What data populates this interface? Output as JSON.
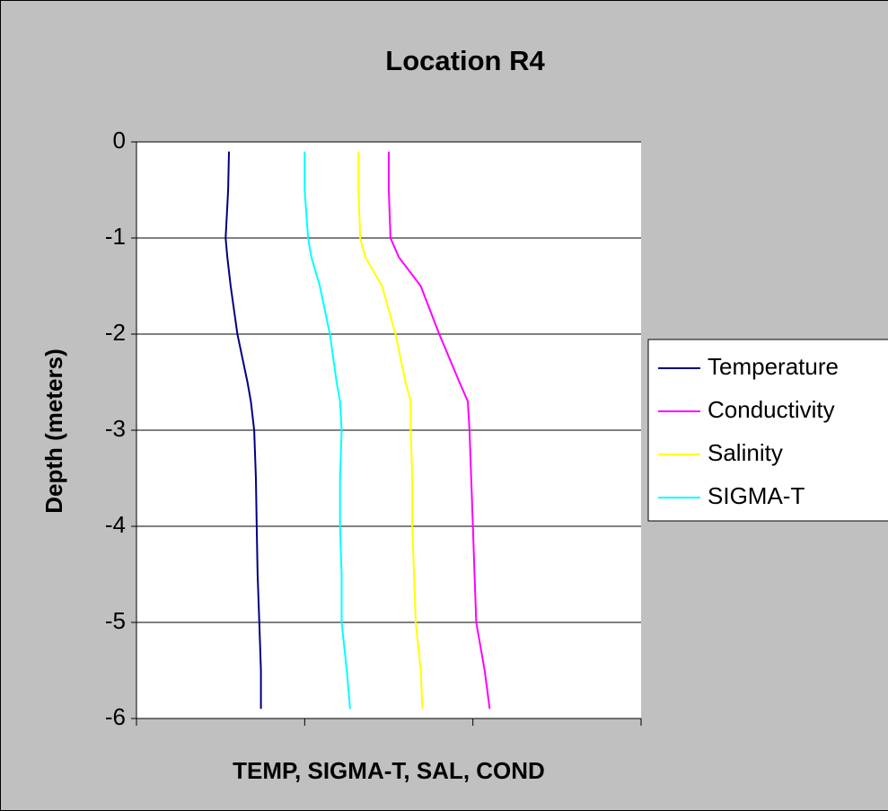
{
  "chart_data": {
    "type": "line",
    "title": "Location R4",
    "xlabel": "TEMP, SIGMA-T, SAL, COND",
    "ylabel": "Depth (meters)",
    "y": [
      -0.1,
      -0.5,
      -1,
      -1.2,
      -1.5,
      -2,
      -2.5,
      -2.7,
      -3,
      -3.5,
      -4,
      -4.5,
      -5,
      -5.5,
      -5.9
    ],
    "series": [
      {
        "name": "Temperature",
        "color": "#000080",
        "values": [
          5.5,
          5.45,
          5.3,
          5.4,
          5.6,
          6.0,
          6.6,
          6.8,
          7.0,
          7.1,
          7.15,
          7.2,
          7.3,
          7.4,
          7.4
        ]
      },
      {
        "name": "Conductivity",
        "color": "#ff00ff",
        "values": [
          15.0,
          15.0,
          15.1,
          15.6,
          16.9,
          18.0,
          19.2,
          19.7,
          19.8,
          19.9,
          20.0,
          20.1,
          20.2,
          20.7,
          21.0
        ]
      },
      {
        "name": "Salinity",
        "color": "#ffff00",
        "values": [
          13.2,
          13.2,
          13.3,
          13.6,
          14.6,
          15.4,
          16.0,
          16.3,
          16.3,
          16.4,
          16.4,
          16.5,
          16.6,
          16.9,
          17.0
        ]
      },
      {
        "name": "SIGMA-T",
        "color": "#00ffff",
        "values": [
          10.0,
          10.0,
          10.2,
          10.4,
          10.9,
          11.5,
          11.9,
          12.1,
          12.2,
          12.1,
          12.1,
          12.2,
          12.2,
          12.5,
          12.7
        ]
      }
    ],
    "xlim": [
      0,
      30
    ],
    "xticks": [
      0,
      10,
      20,
      30
    ],
    "ylim": [
      -6,
      0
    ],
    "yticks": [
      0,
      -1,
      -2,
      -3,
      -4,
      -5,
      -6
    ],
    "grid": true,
    "legend": "right"
  }
}
